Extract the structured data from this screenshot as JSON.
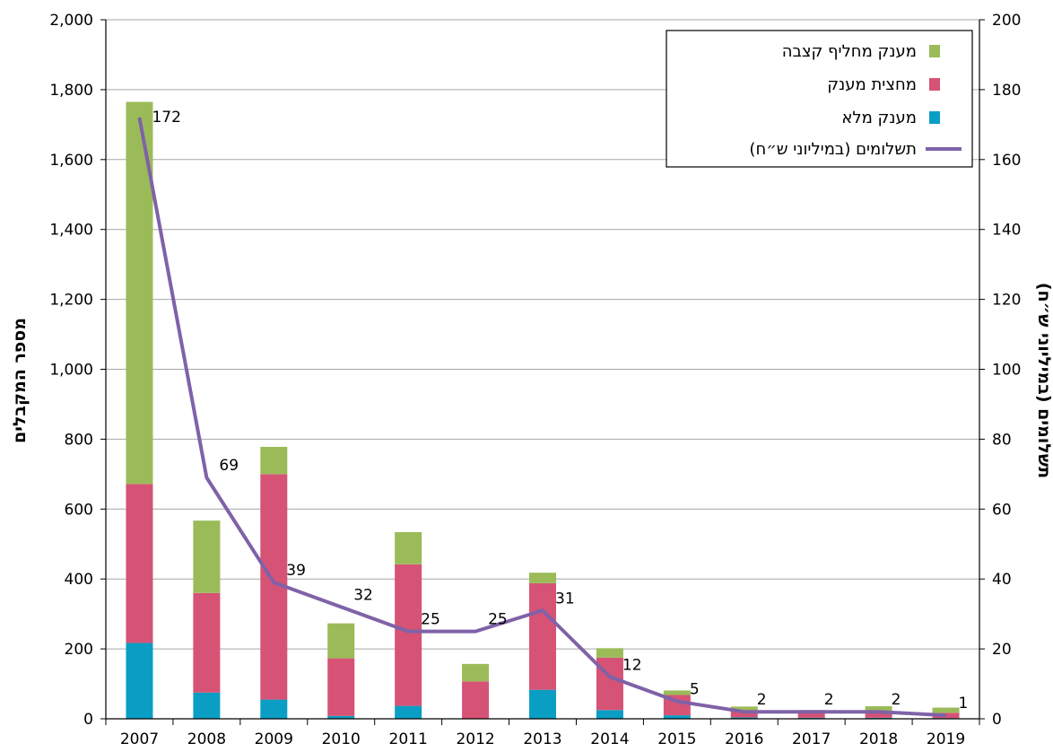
{
  "chart_data": {
    "type": "bar",
    "stacked": true,
    "categories": [
      "2007",
      "2008",
      "2009",
      "2010",
      "2011",
      "2012",
      "2013",
      "2014",
      "2015",
      "2016",
      "2017",
      "2018",
      "2019"
    ],
    "series": [
      {
        "name": "מענק מלא",
        "color": "#0b9ec4",
        "axis": "left",
        "values": [
          217,
          75,
          55,
          8,
          37,
          0,
          83,
          25,
          10,
          4,
          3,
          3,
          2
        ]
      },
      {
        "name": "מחצית מענק",
        "color": "#d65376",
        "axis": "left",
        "values": [
          455,
          285,
          645,
          165,
          405,
          107,
          305,
          150,
          58,
          20,
          17,
          17,
          15
        ]
      },
      {
        "name": "מענק מחליף קצבה",
        "color": "#9bbb59",
        "axis": "left",
        "values": [
          1093,
          207,
          78,
          100,
          92,
          50,
          30,
          27,
          13,
          11,
          5,
          16,
          15
        ]
      }
    ],
    "line_series": {
      "name": "תשלומים (במיליוני ש״ח)",
      "color": "#7f62a8",
      "axis": "right",
      "values": [
        172,
        69,
        39,
        32,
        25,
        25,
        31,
        12,
        5,
        2,
        2,
        2,
        1
      ]
    },
    "left_axis": {
      "label": "מספר המקבלים",
      "min": 0,
      "max": 2000,
      "ticks": [
        "0",
        "200",
        "400",
        "600",
        "800",
        "1,000",
        "1,200",
        "1,400",
        "1,600",
        "1,800",
        "2,000"
      ]
    },
    "right_axis": {
      "label": "תשלומים (במיליוני ש״ח)",
      "min": 0,
      "max": 200,
      "ticks": [
        "0",
        "20",
        "40",
        "60",
        "80",
        "100",
        "120",
        "140",
        "160",
        "180",
        "200"
      ]
    },
    "grid": true,
    "legend_position": "top-right"
  }
}
